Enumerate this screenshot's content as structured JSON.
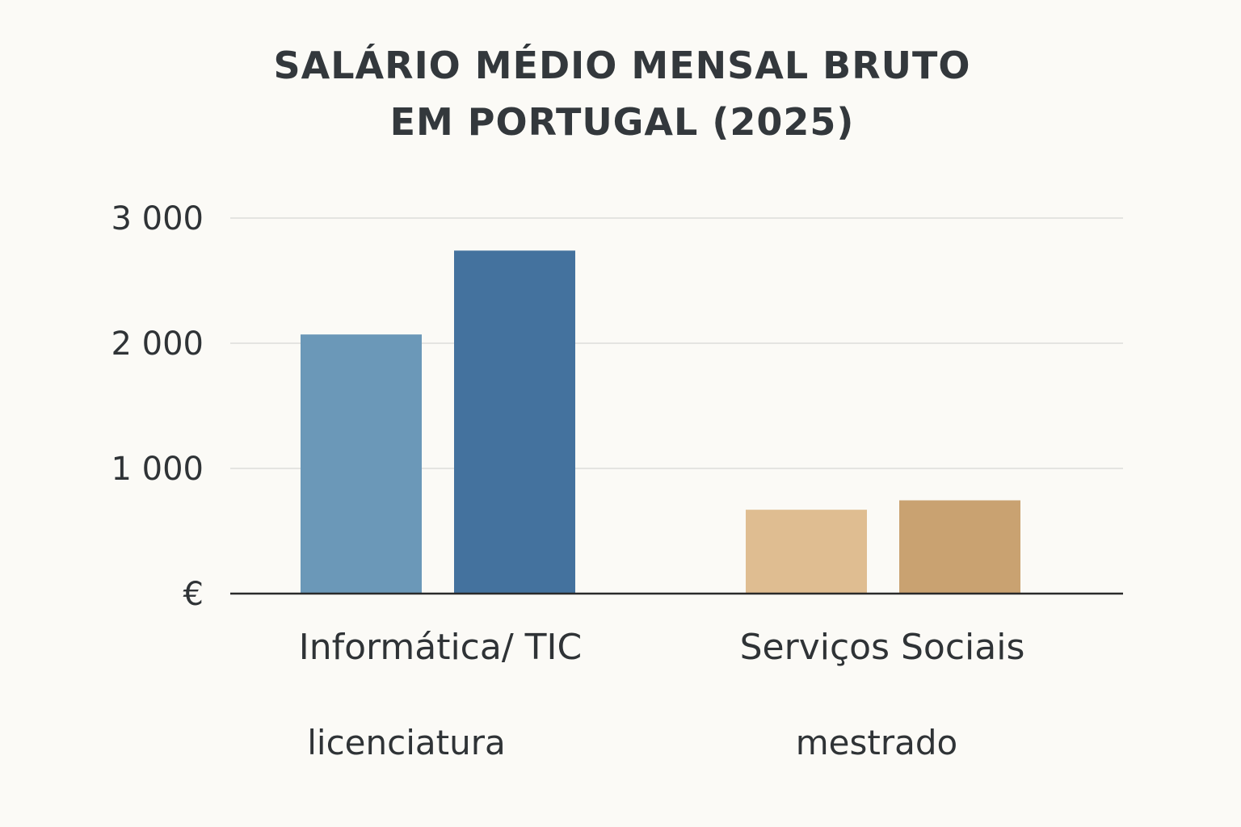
{
  "chart_data": {
    "type": "bar",
    "title_lines": [
      "SALÁRIO MÉDIO MENSAL BRUTO",
      "EM PORTUGAL (2025)"
    ],
    "categories": [
      "Informática/ TIC",
      "Serviços Sociais"
    ],
    "series": [
      {
        "name": "licenciatura",
        "values": [
          2070,
          670
        ]
      },
      {
        "name": "mestrado",
        "values": [
          2740,
          745
        ]
      }
    ],
    "y_ticks": [
      {
        "value": 0,
        "label": "€"
      },
      {
        "value": 1000,
        "label": "1 000"
      },
      {
        "value": 2000,
        "label": "2 000"
      },
      {
        "value": 3000,
        "label": "3 000"
      }
    ],
    "ylim": [
      0,
      3000
    ],
    "grid": true,
    "legend_position": "bottom",
    "colors": {
      "licenciatura": [
        "#6b98b8",
        "#dfbd91"
      ],
      "mestrado": [
        "#44729e",
        "#c9a271"
      ],
      "grid": "#e4e4e1",
      "axis": "#2a2a2a"
    }
  }
}
